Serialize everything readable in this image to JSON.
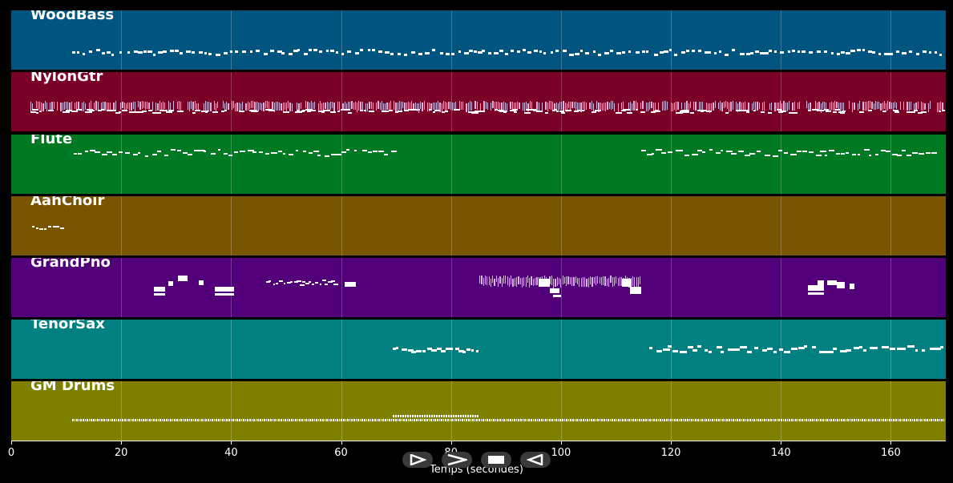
{
  "colors": {
    "WoodBass": "#005580",
    "NylonGtr": "#7a0028",
    "Flute": "#007a22",
    "AahChoir": "#7a5500",
    "GrandPno": "#52007a",
    "TenorSax": "#008080",
    "GM Drums": "#808000",
    "note": "#ffffff",
    "background": "#000000"
  },
  "tracks": [
    {
      "name": "WoodBass"
    },
    {
      "name": "NylonGtr"
    },
    {
      "name": "Flute"
    },
    {
      "name": "AahChoir"
    },
    {
      "name": "GrandPno"
    },
    {
      "name": "TenorSax"
    },
    {
      "name": "GM Drums"
    }
  ],
  "axis": {
    "label": "Temps (secondes)",
    "ticks": [
      "0",
      "20",
      "40",
      "60",
      "80",
      "100",
      "120",
      "140",
      "160"
    ],
    "range": [
      0,
      170
    ]
  },
  "transport": [
    {
      "name": "play-icon"
    },
    {
      "name": "fast-forward-icon"
    },
    {
      "name": "stop-icon"
    },
    {
      "name": "rewind-icon"
    }
  ]
}
